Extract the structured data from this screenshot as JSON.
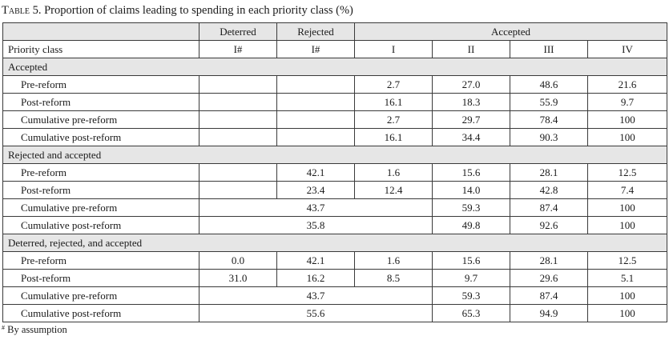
{
  "caption": {
    "label": "Table 5.",
    "text": "Proportion of claims leading to spending in each priority class (%)"
  },
  "header": {
    "groups": [
      "",
      "Deterred",
      "Rejected",
      "Accepted"
    ],
    "row_label": "Priority class",
    "classes": [
      "I#",
      "I#",
      "I",
      "II",
      "III",
      "IV"
    ]
  },
  "sections": [
    {
      "title": "Accepted",
      "rows": [
        {
          "label": "Pre-reform",
          "deterred": "",
          "rejected": "",
          "I": "2.7",
          "II": "27.0",
          "III": "48.6",
          "IV": "21.6"
        },
        {
          "label": "Post-reform",
          "deterred": "",
          "rejected": "",
          "I": "16.1",
          "II": "18.3",
          "III": "55.9",
          "IV": "9.7"
        },
        {
          "label": "Cumulative pre-reform",
          "deterred": "",
          "rejected": "",
          "I": "2.7",
          "II": "29.7",
          "III": "78.4",
          "IV": "100"
        },
        {
          "label": "Cumulative post-reform",
          "deterred": "",
          "rejected": "",
          "I": "16.1",
          "II": "34.4",
          "III": "90.3",
          "IV": "100"
        }
      ]
    },
    {
      "title": "Rejected and accepted",
      "rows": [
        {
          "label": "Pre-reform",
          "deterred": "",
          "rejected": "42.1",
          "I": "1.6",
          "II": "15.6",
          "III": "28.1",
          "IV": "12.5"
        },
        {
          "label": "Post-reform",
          "deterred": "",
          "rejected": "23.4",
          "I": "12.4",
          "II": "14.0",
          "III": "42.8",
          "IV": "7.4"
        },
        {
          "label": "Cumulative pre-reform",
          "merged": "43.7",
          "II": "59.3",
          "III": "87.4",
          "IV": "100"
        },
        {
          "label": "Cumulative post-reform",
          "merged": "35.8",
          "II": "49.8",
          "III": "92.6",
          "IV": "100"
        }
      ]
    },
    {
      "title": "Deterred, rejected, and accepted",
      "rows": [
        {
          "label": "Pre-reform",
          "deterred": "0.0",
          "rejected": "42.1",
          "I": "1.6",
          "II": "15.6",
          "III": "28.1",
          "IV": "12.5"
        },
        {
          "label": "Post-reform",
          "deterred": "31.0",
          "rejected": "16.2",
          "I": "8.5",
          "II": "9.7",
          "III": "29.6",
          "IV": "5.1"
        },
        {
          "label": "Cumulative pre-reform",
          "merged": "43.7",
          "II": "59.3",
          "III": "87.4",
          "IV": "100"
        },
        {
          "label": "Cumulative post-reform",
          "merged": "55.6",
          "II": "65.3",
          "III": "94.9",
          "IV": "100"
        }
      ]
    }
  ],
  "footnote": {
    "mark": "#",
    "text": "By assumption"
  }
}
